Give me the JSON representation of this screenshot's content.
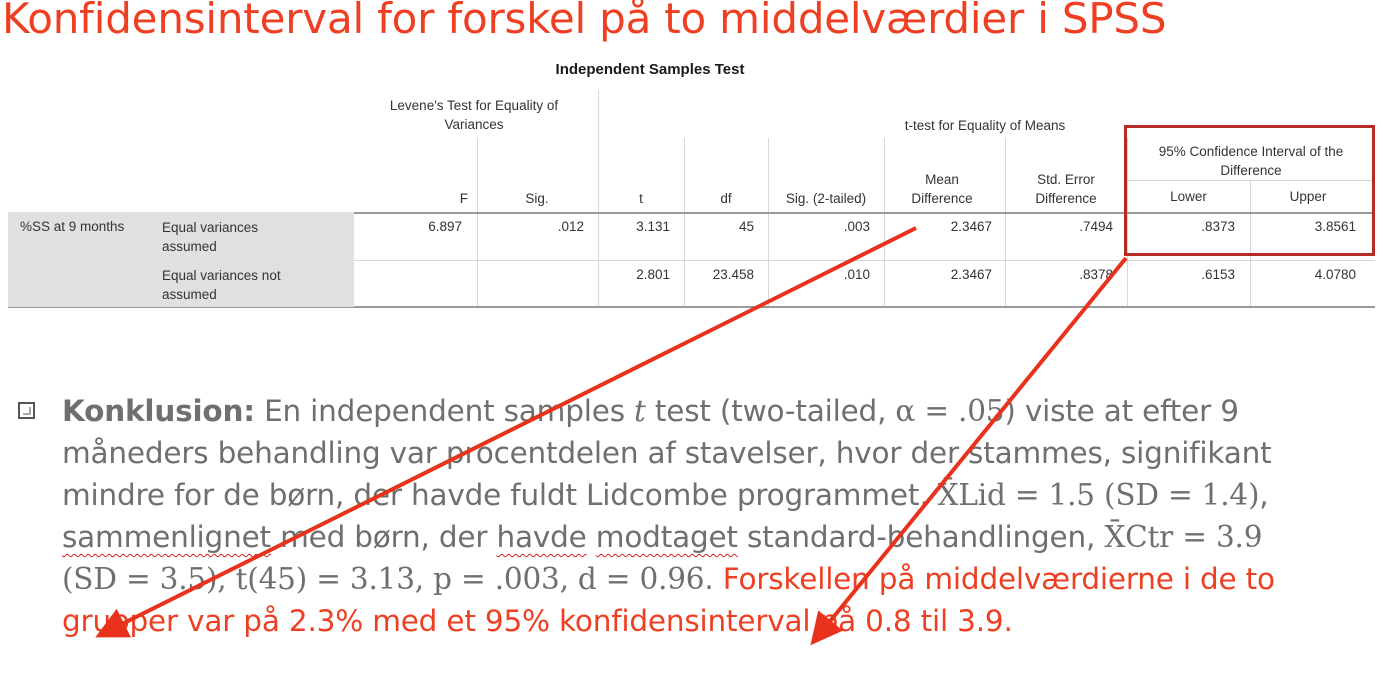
{
  "slide": {
    "title": "Konfidensinterval for forskel på to middelværdier i SPSS"
  },
  "table": {
    "caption": "Independent Samples Test",
    "group_headers": {
      "levene": "Levene's Test for Equality of Variances",
      "ttest": "t-test for Equality of Means",
      "ci": "95% Confidence Interval of the Difference"
    },
    "columns": {
      "f": "F",
      "sig": "Sig.",
      "t": "t",
      "df": "df",
      "sig2": "Sig. (2-tailed)",
      "mean_diff": "Mean Difference",
      "std_err": "Std. Error Difference",
      "lower": "Lower",
      "upper": "Upper"
    },
    "variable": "%SS at 9 months",
    "rows": [
      {
        "label": "Equal variances assumed",
        "f": "6.897",
        "sig": ".012",
        "t": "3.131",
        "df": "45",
        "sig2": ".003",
        "mean_diff": "2.3467",
        "std_err": ".7494",
        "lower": ".8373",
        "upper": "3.8561"
      },
      {
        "label": "Equal variances not assumed",
        "f": "",
        "sig": "",
        "t": "2.801",
        "df": "23.458",
        "sig2": ".010",
        "mean_diff": "2.3467",
        "std_err": ".8378",
        "lower": ".6153",
        "upper": "4.0780"
      }
    ]
  },
  "conclusion": {
    "lead": "Konklusion:",
    "text_1": " En independent samples ",
    "t_symbol": "t",
    "text_2": " test (two-tailed, ",
    "alpha": "α = .05",
    "text_3": ") viste at efter 9 måneders behandling var procentdelen af stavelser, hvor der stammes, signifikant mindre for de børn, der havde fuldt Lidcombe programmet, ",
    "stat_lid": "X̄Lid = 1.5 (SD = 1.4)",
    "text_4": ", ",
    "squig_1": "sammenlignet",
    "text_5": " med børn, der ",
    "squig_2": "havde",
    "text_6": " ",
    "squig_3": "modtaget",
    "text_7": " standard-behandlingen, ",
    "stat_ctr": "X̄Ctr = 3.9 (SD = 3.5), t(45) = 3.13, p = .003, d = 0.96",
    "text_8": ". ",
    "highlight": "Forskellen på middelværdierne i de to grupper var på 2.3% med et 95% konfidensinterval på 0.8 til 3.9."
  },
  "colors": {
    "title_red": "#ee3f22",
    "box_red": "#b82b24",
    "arrow_red": "#e8321c",
    "body_gray": "#6f6f6f"
  }
}
